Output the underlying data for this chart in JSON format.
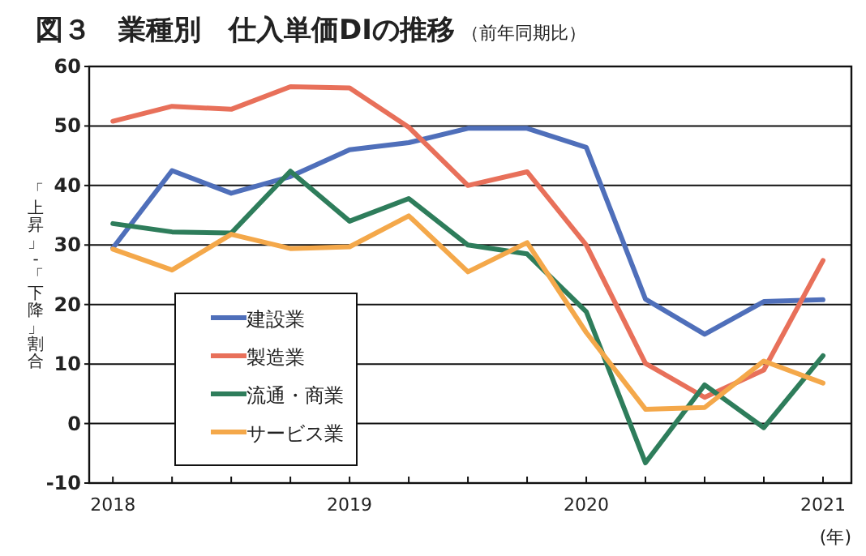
{
  "chart_data": {
    "type": "line",
    "title": "図３　業種別　仕入単価DIの推移",
    "subtitle": "（前年同期比）",
    "ylabel": "「上昇」-「下降」割合",
    "xlabel": "(年)",
    "x": [
      2018,
      2018.25,
      2018.5,
      2018.75,
      2019,
      2019.25,
      2019.5,
      2019.75,
      2020,
      2020.25,
      2020.5,
      2020.75,
      2021
    ],
    "series": [
      {
        "name": "建設業",
        "color": "#4f6fba",
        "values": [
          29.5,
          42.5,
          38.7,
          41.5,
          46,
          47.2,
          49.6,
          49.6,
          46.4,
          20.9,
          15,
          20.5,
          20.8
        ]
      },
      {
        "name": "製造業",
        "color": "#e8705a",
        "values": [
          50.8,
          53.3,
          52.8,
          56.6,
          56.4,
          49.8,
          40,
          42.3,
          30,
          10.1,
          4.4,
          9,
          27.4
        ]
      },
      {
        "name": "流通・商業",
        "color": "#2e7d5b",
        "values": [
          33.6,
          32.2,
          32,
          42.4,
          34,
          37.8,
          30,
          28.5,
          18.8,
          -6.6,
          6.5,
          -0.7,
          11.4
        ]
      },
      {
        "name": "サービス業",
        "color": "#f4a84a",
        "values": [
          29.3,
          25.8,
          31.8,
          29.4,
          29.7,
          34.9,
          25.5,
          30.4,
          15.3,
          2.4,
          2.7,
          10.5,
          6.8
        ]
      }
    ],
    "xlim": [
      2017.9,
      2021.12
    ],
    "xticks": [
      2018,
      {
        "value": 2018.25,
        "label": null
      },
      {
        "value": 2018.5,
        "label": null
      },
      {
        "value": 2018.75,
        "label": null
      },
      2019,
      {
        "value": 2019.25,
        "label": null
      },
      {
        "value": 2019.5,
        "label": null
      },
      {
        "value": 2019.75,
        "label": null
      },
      2020,
      {
        "value": 2020.25,
        "label": null
      },
      {
        "value": 2020.5,
        "label": null
      },
      {
        "value": 2020.75,
        "label": null
      },
      2021
    ],
    "ylim": [
      -10,
      60
    ],
    "yticks": [
      -10,
      0,
      10,
      20,
      30,
      40,
      50,
      60
    ],
    "grid": "y",
    "legend": "bottom left",
    "line_style": "solid",
    "marker": "none"
  }
}
